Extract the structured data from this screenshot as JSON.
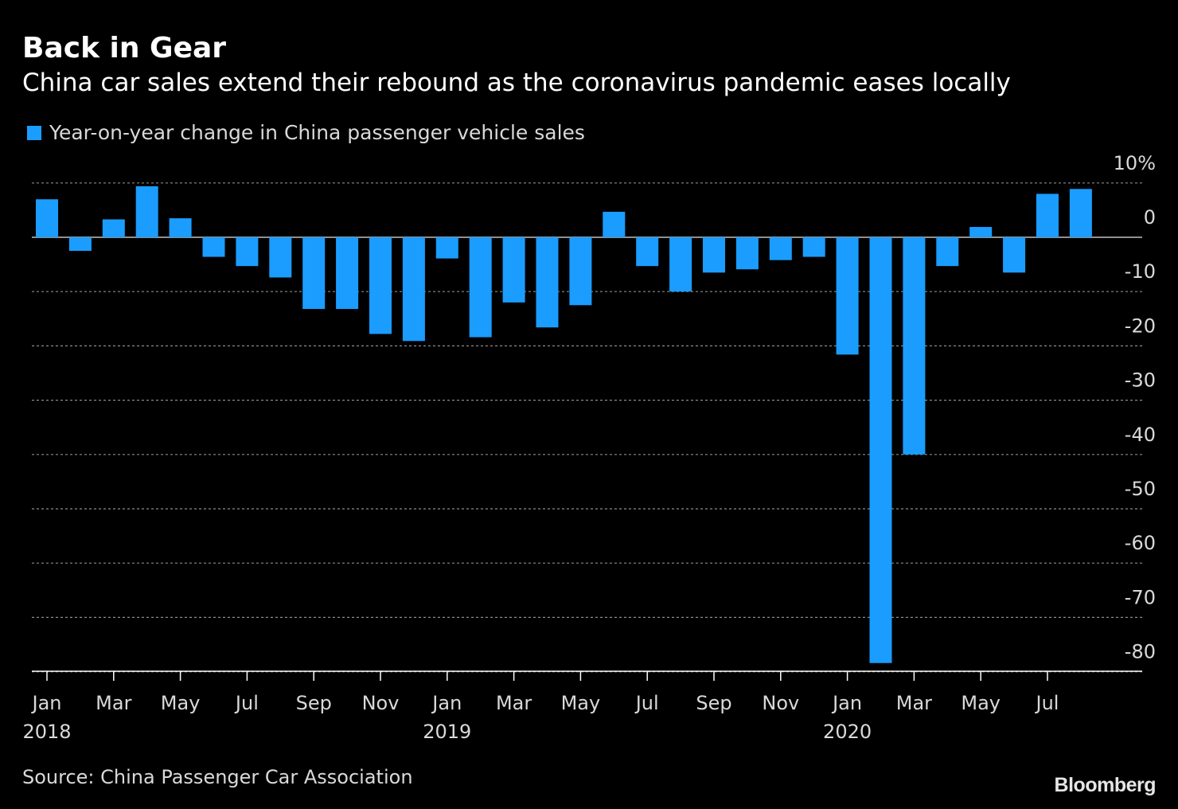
{
  "title": "Back in Gear",
  "subtitle": "China car sales extend their rebound as the coronavirus pandemic eases locally",
  "source": "Source: China Passenger Car Association",
  "brand": "Bloomberg",
  "colors": {
    "background": "#000000",
    "bar": "#1a9dff",
    "grid": "#8c8c8c",
    "text": "#ffffff"
  },
  "chart_data": {
    "type": "bar",
    "legend": [
      "Year-on-year change in China passenger vehicle sales"
    ],
    "legend_position": "top-left",
    "grid": true,
    "ylim": [
      -84,
      10
    ],
    "yticks": [
      10,
      0,
      -10,
      -20,
      -30,
      -40,
      -50,
      -60,
      -70,
      -80
    ],
    "ytick_labels": [
      "10%",
      "0",
      "-10",
      "-20",
      "-30",
      "-40",
      "-50",
      "-60",
      "-70",
      "-80"
    ],
    "categories": [
      "Jan 2018",
      "Feb 2018",
      "Mar 2018",
      "Apr 2018",
      "May 2018",
      "Jun 2018",
      "Jul 2018",
      "Aug 2018",
      "Sep 2018",
      "Oct 2018",
      "Nov 2018",
      "Dec 2018",
      "Jan 2019",
      "Feb 2019",
      "Mar 2019",
      "Apr 2019",
      "May 2019",
      "Jun 2019",
      "Jul 2019",
      "Aug 2019",
      "Sep 2019",
      "Oct 2019",
      "Nov 2019",
      "Dec 2019",
      "Jan 2020",
      "Feb 2020",
      "Mar 2020",
      "Apr 2020",
      "May 2020",
      "Jun 2020",
      "Jul 2020",
      "Aug 2020"
    ],
    "xtick_labels": [
      {
        "index": 0,
        "month": "Jan",
        "year": "2018"
      },
      {
        "index": 2,
        "month": "Mar",
        "year": ""
      },
      {
        "index": 4,
        "month": "May",
        "year": ""
      },
      {
        "index": 6,
        "month": "Jul",
        "year": ""
      },
      {
        "index": 8,
        "month": "Sep",
        "year": ""
      },
      {
        "index": 10,
        "month": "Nov",
        "year": ""
      },
      {
        "index": 12,
        "month": "Jan",
        "year": "2019"
      },
      {
        "index": 14,
        "month": "Mar",
        "year": ""
      },
      {
        "index": 16,
        "month": "May",
        "year": ""
      },
      {
        "index": 18,
        "month": "Jul",
        "year": ""
      },
      {
        "index": 20,
        "month": "Sep",
        "year": ""
      },
      {
        "index": 22,
        "month": "Nov",
        "year": ""
      },
      {
        "index": 24,
        "month": "Jan",
        "year": "2020"
      },
      {
        "index": 26,
        "month": "Mar",
        "year": ""
      },
      {
        "index": 28,
        "month": "May",
        "year": ""
      },
      {
        "index": 30,
        "month": "Jul",
        "year": ""
      }
    ],
    "series": [
      {
        "name": "Year-on-year change in China passenger vehicle sales",
        "values": [
          7,
          -2.5,
          3.3,
          9.4,
          3.5,
          -3.6,
          -5.3,
          -7.4,
          -13.2,
          -13.2,
          -17.8,
          -19.1,
          -3.9,
          -18.4,
          -12,
          -16.6,
          -12.5,
          4.7,
          -5.3,
          -10,
          -6.5,
          -5.9,
          -4.2,
          -3.6,
          -21.6,
          -78.4,
          -40,
          -5.3,
          1.9,
          -6.5,
          8,
          8.9
        ]
      }
    ]
  }
}
